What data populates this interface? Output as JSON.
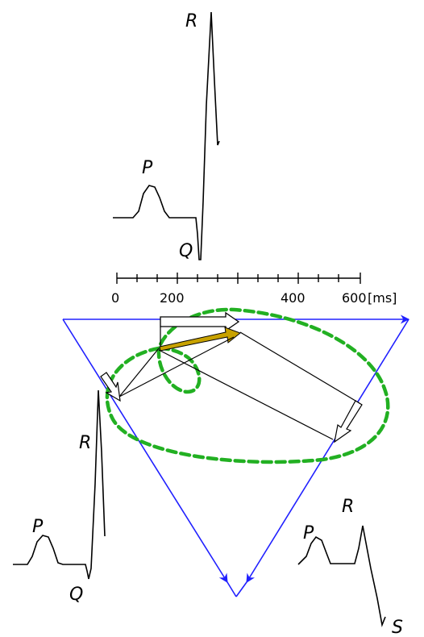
{
  "top_trace": {
    "labels": {
      "p": "P",
      "q": "Q",
      "r": "R"
    }
  },
  "time_axis": {
    "ticks": [
      "0",
      "200",
      "400",
      "600"
    ],
    "unit": "[ms]"
  },
  "left_trace": {
    "labels": {
      "p": "P",
      "q": "Q",
      "r": "R"
    }
  },
  "right_trace": {
    "labels": {
      "p": "P",
      "r": "R",
      "s": "S"
    }
  },
  "colors": {
    "trace": "#000000",
    "triangle": "#2020ff",
    "loop": "#22b022",
    "vector_fill": "#ffffff",
    "highlight_vector": "#c8a200"
  }
}
